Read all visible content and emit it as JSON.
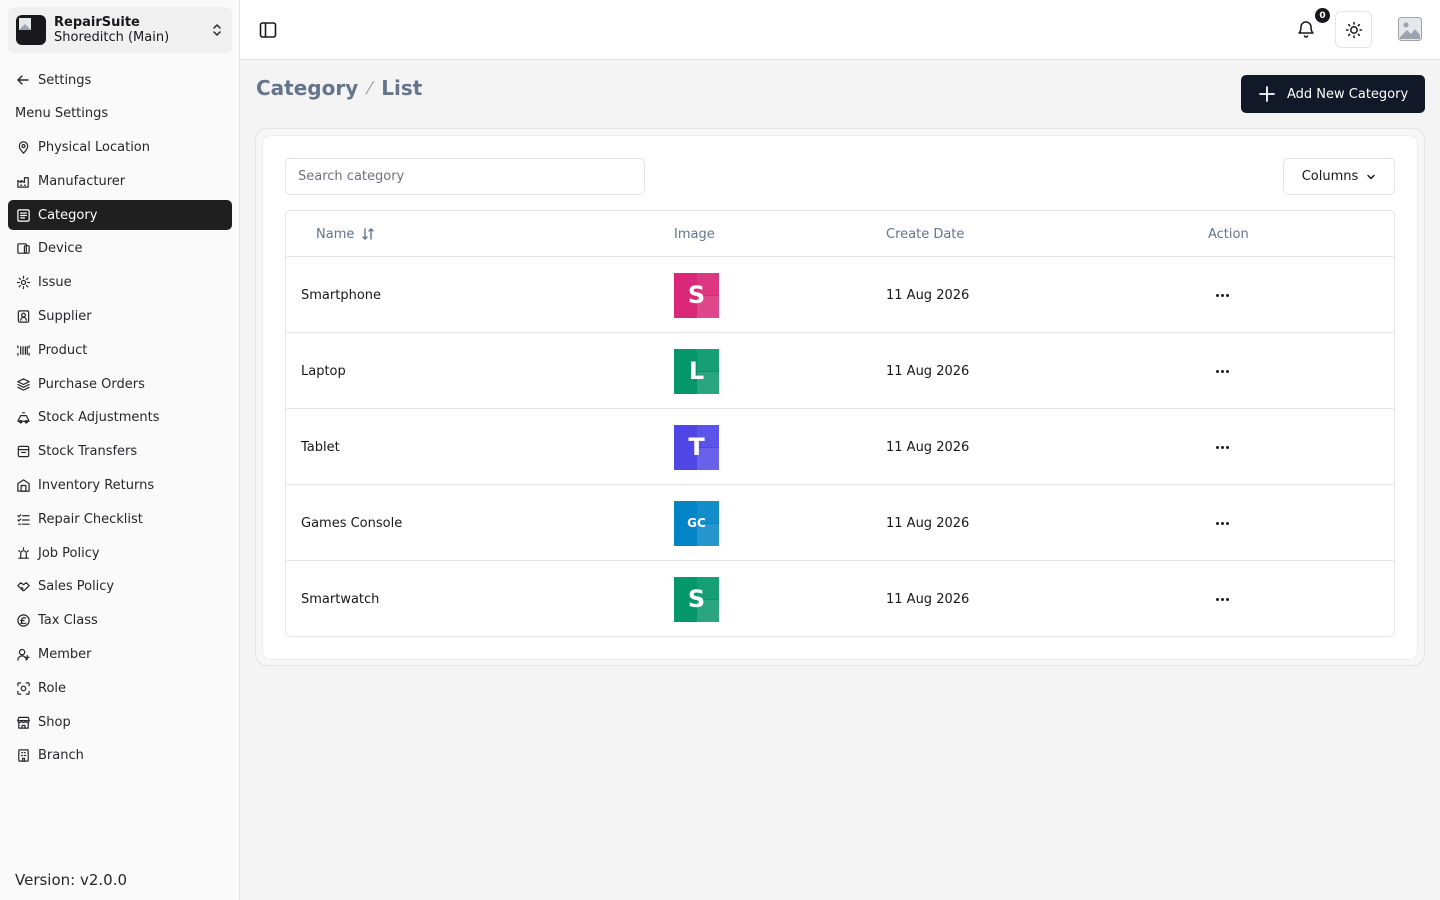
{
  "brand": {
    "name": "RepairSuite",
    "branch": "Shoreditch (Main)"
  },
  "nav": {
    "back_label": "Settings",
    "section_label": "Menu Settings",
    "items": [
      {
        "label": "Physical Location",
        "icon": "location-icon"
      },
      {
        "label": "Manufacturer",
        "icon": "factory-icon"
      },
      {
        "label": "Category",
        "icon": "category-icon",
        "active": true
      },
      {
        "label": "Device",
        "icon": "device-icon"
      },
      {
        "label": "Issue",
        "icon": "issue-icon"
      },
      {
        "label": "Supplier",
        "icon": "supplier-icon"
      },
      {
        "label": "Product",
        "icon": "barcode-icon"
      },
      {
        "label": "Purchase Orders",
        "icon": "layers-icon"
      },
      {
        "label": "Stock Adjustments",
        "icon": "adjust-icon"
      },
      {
        "label": "Stock Transfers",
        "icon": "transfer-icon"
      },
      {
        "label": "Inventory Returns",
        "icon": "return-icon"
      },
      {
        "label": "Repair Checklist",
        "icon": "checklist-icon"
      },
      {
        "label": "Job Policy",
        "icon": "policy-icon"
      },
      {
        "label": "Sales Policy",
        "icon": "handshake-icon"
      },
      {
        "label": "Tax Class",
        "icon": "tax-icon"
      },
      {
        "label": "Member",
        "icon": "member-icon"
      },
      {
        "label": "Role",
        "icon": "role-icon"
      },
      {
        "label": "Shop",
        "icon": "shop-icon"
      },
      {
        "label": "Branch",
        "icon": "branch-icon"
      }
    ]
  },
  "version": "Version: v2.0.0",
  "topbar": {
    "notification_count": "0"
  },
  "breadcrumb": {
    "root": "Category",
    "current": "List"
  },
  "add_button_label": "Add New Category",
  "search": {
    "placeholder": "Search category",
    "value": ""
  },
  "columns_button_label": "Columns",
  "table": {
    "headers": {
      "name": "Name",
      "image": "Image",
      "create_date": "Create Date",
      "action": "Action"
    },
    "rows": [
      {
        "name": "Smartphone",
        "thumb_text": "S",
        "thumb_color": "#db2777",
        "date": "11 Aug 2026"
      },
      {
        "name": "Laptop",
        "thumb_text": "L",
        "thumb_color": "#059669",
        "date": "11 Aug 2026"
      },
      {
        "name": "Tablet",
        "thumb_text": "T",
        "thumb_color": "#4f46e5",
        "date": "11 Aug 2026"
      },
      {
        "name": "Games Console",
        "thumb_text": "GC",
        "thumb_color": "#0284c7",
        "date": "11 Aug 2026"
      },
      {
        "name": "Smartwatch",
        "thumb_text": "S",
        "thumb_color": "#059669",
        "date": "11 Aug 2026"
      }
    ]
  }
}
